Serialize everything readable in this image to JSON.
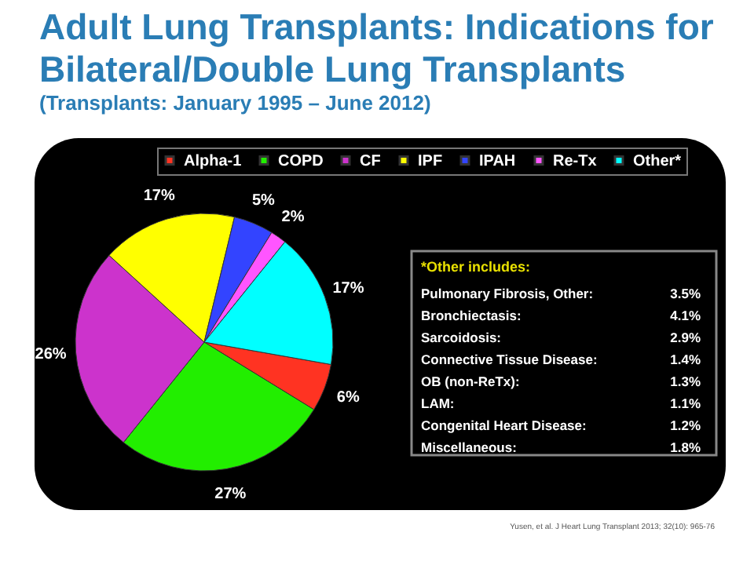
{
  "chart_data": {
    "type": "pie",
    "title": "Adult Lung Transplants: Indications for\nBilateral/Double Lung Transplants",
    "subtitle": "(Transplants: January 1995 – June 2012)",
    "categories": [
      "Alpha-1",
      "COPD",
      "CF",
      "IPF",
      "IPAH",
      "Re-Tx",
      "Other*"
    ],
    "values": [
      6,
      27,
      26,
      17,
      5,
      2,
      17
    ],
    "value_labels": [
      "6%",
      "27%",
      "26%",
      "17%",
      "5%",
      "2%",
      "17%"
    ],
    "colors": [
      "#ff3322",
      "#22ee00",
      "#cc33cc",
      "#ffff00",
      "#3344ff",
      "#ff55ff",
      "#00ffff"
    ],
    "legend": "top",
    "annotations": [
      "*Other includes:",
      "Pulmonary Fibrosis, Other:",
      "3.5%",
      "Bronchiectasis:",
      "4.1%",
      "Sarcoidosis:",
      "2.9%",
      "Connective Tissue Disease:",
      "1.4%",
      "OB (non-ReTx):",
      "1.3%",
      "LAM:",
      "1.1%",
      "Congenital Heart Disease:",
      "1.2%",
      "Miscellaneous:",
      "1.8%",
      "Yusen, et al. J Heart Lung Transplant 2013; 32(10): 965-76"
    ]
  }
}
